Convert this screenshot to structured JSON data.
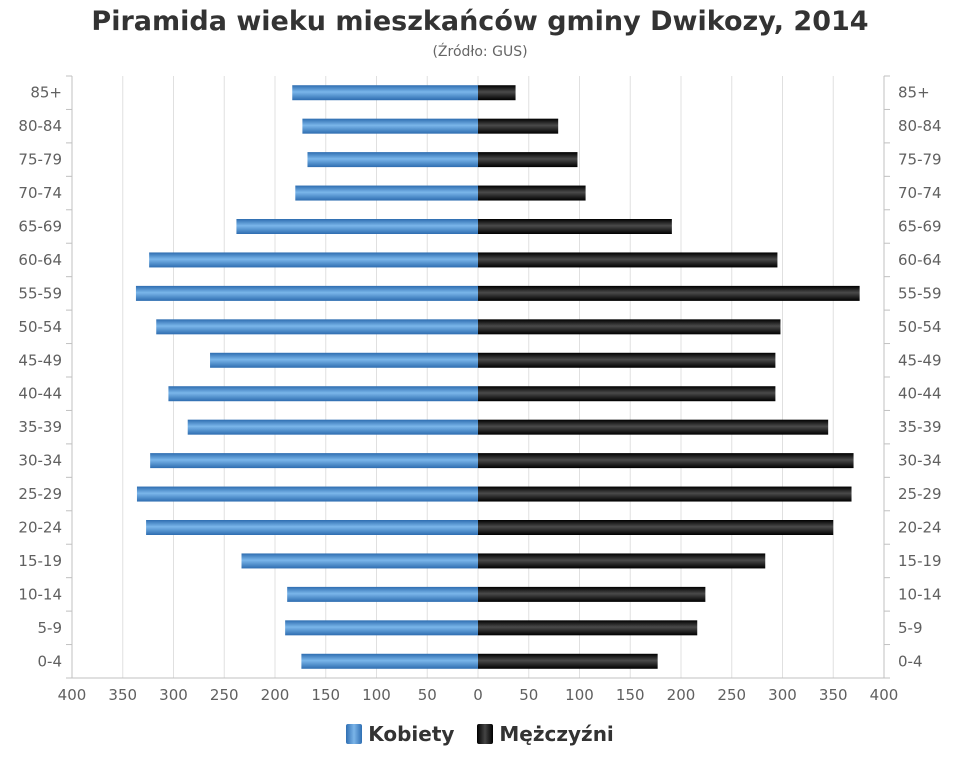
{
  "chart_data": {
    "type": "bar",
    "orientation": "horizontal",
    "title": "Piramida wieku mieszkańców gminy Dwikozy, 2014",
    "subtitle": "(Źródło: GUS)",
    "categories": [
      "0-4",
      "5-9",
      "10-14",
      "15-19",
      "20-24",
      "25-29",
      "30-34",
      "35-39",
      "40-44",
      "45-49",
      "50-54",
      "55-59",
      "60-64",
      "65-69",
      "70-74",
      "75-79",
      "80-84",
      "85+"
    ],
    "series": [
      {
        "name": "Kobiety",
        "color": "#4a90d9",
        "values": [
          174,
          190,
          188,
          233,
          327,
          336,
          323,
          286,
          305,
          264,
          317,
          337,
          324,
          238,
          180,
          168,
          173,
          183
        ]
      },
      {
        "name": "Mężczyźni",
        "color": "#1a1a1a",
        "values": [
          177,
          216,
          224,
          283,
          350,
          368,
          370,
          345,
          293,
          293,
          298,
          376,
          295,
          191,
          106,
          98,
          79,
          37
        ]
      }
    ],
    "xlim": [
      -400,
      400
    ],
    "xticks": [
      "400",
      "350",
      "300",
      "250",
      "200",
      "150",
      "100",
      "50",
      "0",
      "50",
      "100",
      "150",
      "200",
      "250",
      "300",
      "350",
      "400"
    ],
    "grid": true,
    "legend_position": "bottom"
  }
}
